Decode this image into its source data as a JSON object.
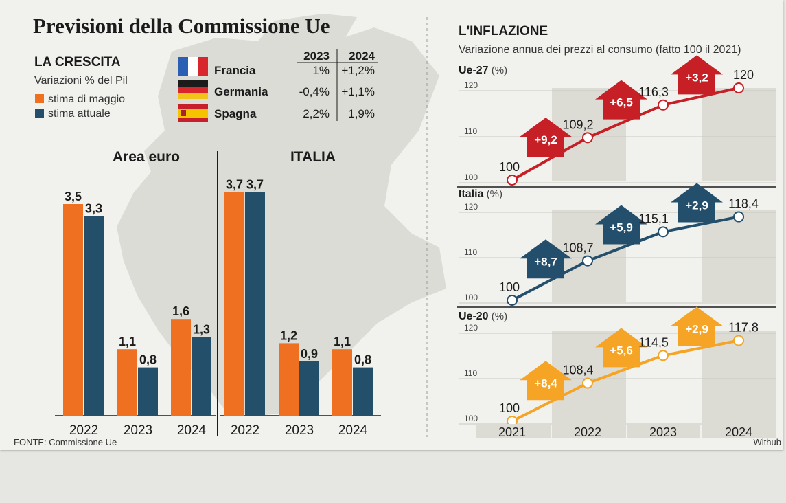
{
  "title": "Previsioni della Commissione Ue",
  "crescita": {
    "heading": "LA CRESCITA",
    "subtitle": "Variazioni % del Pil",
    "legend": [
      {
        "label": "stima di maggio",
        "color": "#f07021"
      },
      {
        "label": "stima attuale",
        "color": "#234f6b"
      }
    ],
    "table": {
      "columns": [
        "2023",
        "2024"
      ],
      "rows": [
        {
          "country": "Francia",
          "flag": "france-flag",
          "values": [
            "1%",
            "+1,2%"
          ]
        },
        {
          "country": "Germania",
          "flag": "germany-flag",
          "values": [
            "-0,4%",
            "+1,1%"
          ]
        },
        {
          "country": "Spagna",
          "flag": "spain-flag",
          "values": [
            "2,2%",
            "1,9%"
          ]
        }
      ]
    }
  },
  "inflazione": {
    "heading": "L'INFLAZIONE",
    "subtitle": "Variazione annua dei prezzi al consumo (fatto 100 il 2021)"
  },
  "source": "FONTE: Commissione Ue",
  "credit": "Withub",
  "colors": {
    "orange": "#f07021",
    "blue": "#234f6b",
    "red": "#c61f25",
    "italia_blue": "#244f6c",
    "yellow": "#f5a425"
  },
  "chart_data": [
    {
      "type": "bar",
      "title": "Area euro",
      "categories": [
        "2022",
        "2023",
        "2024"
      ],
      "series": [
        {
          "name": "stima di maggio",
          "values": [
            3.5,
            1.1,
            1.6
          ],
          "labels": [
            "3,5",
            "1,1",
            "1,6"
          ]
        },
        {
          "name": "stima attuale",
          "values": [
            3.3,
            0.8,
            1.3
          ],
          "labels": [
            "3,3",
            "0,8",
            "1,3"
          ]
        }
      ],
      "ylim": [
        0,
        4
      ]
    },
    {
      "type": "bar",
      "title": "ITALIA",
      "categories": [
        "2022",
        "2023",
        "2024"
      ],
      "series": [
        {
          "name": "stima di maggio",
          "values": [
            3.7,
            1.2,
            1.1
          ],
          "labels": [
            "3,7",
            "1,2",
            "1,1"
          ]
        },
        {
          "name": "stima attuale",
          "values": [
            3.7,
            0.9,
            0.8
          ],
          "labels": [
            "3,7",
            "0,9",
            "0,8"
          ]
        }
      ],
      "ylim": [
        0,
        4
      ]
    },
    {
      "type": "line",
      "title": "Ue-27",
      "unit": "(%)",
      "x": [
        "2021",
        "2022",
        "2023",
        "2024"
      ],
      "values": [
        100,
        109.2,
        116.3,
        120
      ],
      "value_labels": [
        "100",
        "109,2",
        "116,3",
        "120"
      ],
      "changes": [
        "+9,2",
        "+6,5",
        "+3,2"
      ],
      "yticks": [
        "100",
        "110",
        "120"
      ],
      "ylim": [
        100,
        120
      ],
      "color": "#c61f25"
    },
    {
      "type": "line",
      "title": "Italia",
      "unit": "(%)",
      "x": [
        "2021",
        "2022",
        "2023",
        "2024"
      ],
      "values": [
        100,
        108.7,
        115.1,
        118.4
      ],
      "value_labels": [
        "100",
        "108,7",
        "115,1",
        "118,4"
      ],
      "changes": [
        "+8,7",
        "+5,9",
        "+2,9"
      ],
      "yticks": [
        "100",
        "110",
        "120"
      ],
      "ylim": [
        100,
        120
      ],
      "color": "#244f6c"
    },
    {
      "type": "line",
      "title": "Ue-20",
      "unit": "(%)",
      "x": [
        "2021",
        "2022",
        "2023",
        "2024"
      ],
      "values": [
        100,
        108.4,
        114.5,
        117.8
      ],
      "value_labels": [
        "100",
        "108,4",
        "114,5",
        "117,8"
      ],
      "changes": [
        "+8,4",
        "+5,6",
        "+2,9"
      ],
      "yticks": [
        "100",
        "110",
        "120"
      ],
      "ylim": [
        100,
        120
      ],
      "color": "#f5a425"
    }
  ]
}
